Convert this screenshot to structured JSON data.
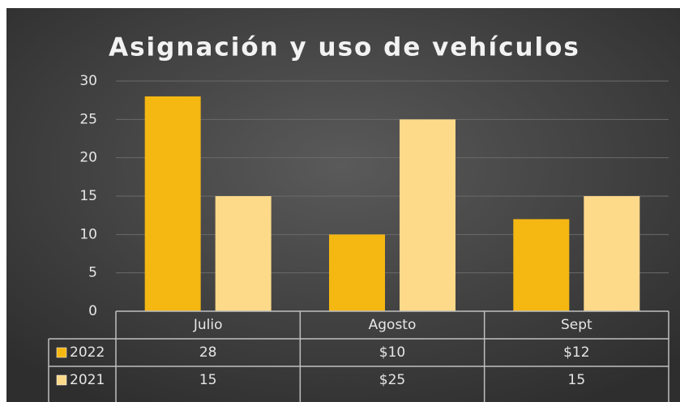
{
  "chart_data": {
    "type": "bar",
    "title": "Asignación y uso de vehículos",
    "categories": [
      "Julio",
      "Agosto",
      "Sept"
    ],
    "series": [
      {
        "name": "2022",
        "color": "#f5b712",
        "values": [
          28,
          10,
          12
        ],
        "value_labels": [
          "28",
          "$10",
          "$12"
        ]
      },
      {
        "name": "2021",
        "color": "#fdd98a",
        "values": [
          15,
          25,
          15
        ],
        "value_labels": [
          "15",
          "$25",
          "15"
        ]
      }
    ],
    "ylim": [
      0,
      30
    ],
    "yticks": [
      0,
      5,
      10,
      15,
      20,
      25,
      30
    ],
    "grid": true,
    "data_table": true
  }
}
